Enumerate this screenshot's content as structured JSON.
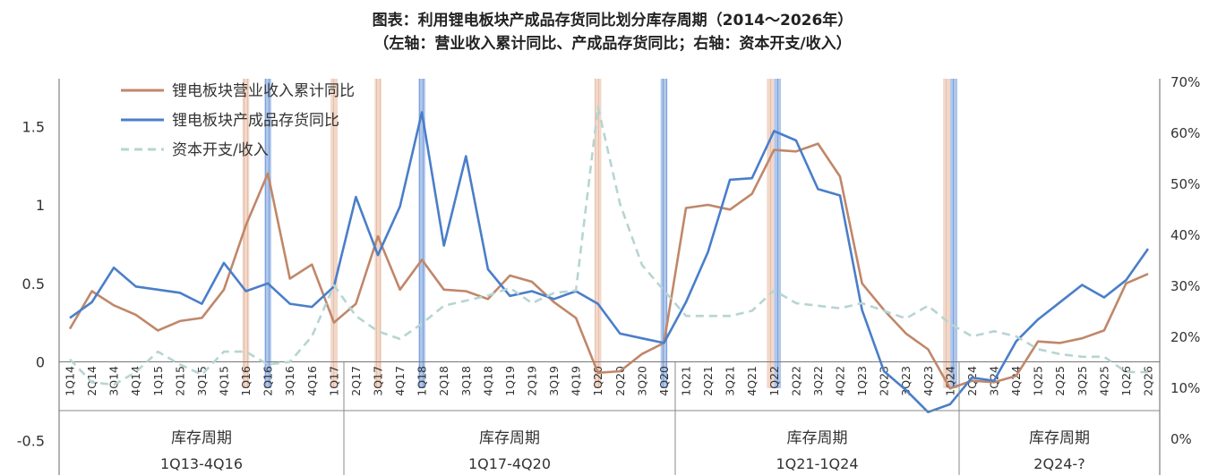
{
  "chart_data": {
    "type": "line",
    "title": "图表：利用锂电板块产成品存货同比划分库存周期（2014～2026年）",
    "subtitle": "（左轴：营业收入累计同比、产成品存货同比；右轴：资本开支/收入）",
    "categories": [
      "1Q14",
      "2Q14",
      "3Q14",
      "4Q14",
      "1Q15",
      "2Q15",
      "3Q15",
      "4Q15",
      "1Q16",
      "2Q16",
      "3Q16",
      "4Q16",
      "1Q17",
      "2Q17",
      "3Q17",
      "4Q17",
      "1Q18",
      "2Q18",
      "3Q18",
      "4Q18",
      "1Q19",
      "2Q19",
      "3Q19",
      "4Q19",
      "1Q20",
      "2Q20",
      "3Q20",
      "4Q20",
      "1Q21",
      "2Q21",
      "3Q21",
      "4Q21",
      "1Q22",
      "2Q22",
      "3Q22",
      "4Q22",
      "1Q23",
      "2Q23",
      "3Q23",
      "4Q23",
      "1Q24",
      "2Q24",
      "3Q24",
      "4Q24",
      "1Q25",
      "2Q25",
      "3Q25",
      "4Q25",
      "1Q26",
      "2Q26"
    ],
    "y_left": {
      "ticks": [
        "-0.5",
        "0",
        "0.5",
        "1",
        "1.5"
      ],
      "range": [
        -0.5,
        1.75
      ]
    },
    "y_right": {
      "ticks": [
        "0%",
        "10%",
        "20%",
        "30%",
        "40%",
        "50%",
        "60%",
        "70%"
      ],
      "range": [
        0,
        70
      ]
    },
    "series": [
      {
        "name": "锂电板块营业收入累计同比",
        "axis": "left",
        "color": "#C0876A",
        "values": [
          0.21,
          0.45,
          0.36,
          0.3,
          0.2,
          0.26,
          0.28,
          0.46,
          0.87,
          1.2,
          0.53,
          0.62,
          0.25,
          0.37,
          0.8,
          0.46,
          0.65,
          0.46,
          0.45,
          0.4,
          0.55,
          0.51,
          0.38,
          0.28,
          -0.07,
          -0.06,
          0.05,
          0.12,
          0.98,
          1.0,
          0.97,
          1.07,
          1.35,
          1.34,
          1.39,
          1.18,
          0.5,
          0.33,
          0.18,
          0.08,
          -0.17,
          -0.12,
          -0.13,
          -0.09,
          0.13,
          0.12,
          0.15,
          0.2,
          0.5,
          0.56
        ]
      },
      {
        "name": "锂电板块产成品存货同比",
        "axis": "left",
        "color": "#4A7EC9",
        "values": [
          0.28,
          0.38,
          0.6,
          0.48,
          0.46,
          0.44,
          0.37,
          0.63,
          0.45,
          0.5,
          0.37,
          0.35,
          0.48,
          1.05,
          0.68,
          0.99,
          1.59,
          0.74,
          1.31,
          0.59,
          0.42,
          0.45,
          0.4,
          0.45,
          0.37,
          0.18,
          0.15,
          0.12,
          0.38,
          0.7,
          1.16,
          1.17,
          1.47,
          1.41,
          1.1,
          1.06,
          0.33,
          -0.06,
          -0.18,
          -0.32,
          -0.27,
          -0.1,
          -0.12,
          0.13,
          0.27,
          0.38,
          0.49,
          0.41,
          0.52,
          0.72
        ]
      },
      {
        "name": "资本开支/收入",
        "axis": "right",
        "color": "#B6D5D2",
        "dashed": true,
        "values": [
          15.5,
          11,
          10.5,
          13,
          17,
          14.5,
          12.5,
          17,
          17,
          14.5,
          15,
          20,
          30,
          24,
          21,
          19.5,
          22.5,
          26,
          27,
          28,
          29.5,
          26.5,
          28.5,
          29,
          65,
          46,
          34,
          29,
          24,
          24,
          24,
          25,
          29,
          26.5,
          26,
          25.5,
          26.5,
          25,
          23.5,
          26,
          22.5,
          20,
          21,
          20,
          17.5,
          16.5,
          16,
          16,
          13,
          13
        ]
      }
    ],
    "shaded_periods": [
      {
        "type": "revenue",
        "color": "#E6B79E",
        "categories": [
          "1Q16",
          "1Q17",
          "3Q17",
          "1Q20",
          "1Q22",
          "1Q24"
        ]
      },
      {
        "type": "inventory",
        "color": "#6E98D8",
        "categories": [
          "2Q16",
          "1Q18",
          "4Q20",
          "1Q22",
          "1Q24"
        ]
      }
    ],
    "cycle_groups": [
      {
        "label": "库存周期",
        "period": "1Q13-4Q16",
        "from": "1Q14",
        "to": "1Q17"
      },
      {
        "label": "库存周期",
        "period": "1Q17-4Q20",
        "from": "2Q17",
        "to": "4Q20"
      },
      {
        "label": "库存周期",
        "period": "1Q21-1Q24",
        "from": "1Q21",
        "to": "1Q24"
      },
      {
        "label": "库存周期",
        "period": "2Q24-?",
        "from": "2Q24",
        "to": "2Q26"
      }
    ],
    "legend_position": "top-left",
    "grid": false
  }
}
